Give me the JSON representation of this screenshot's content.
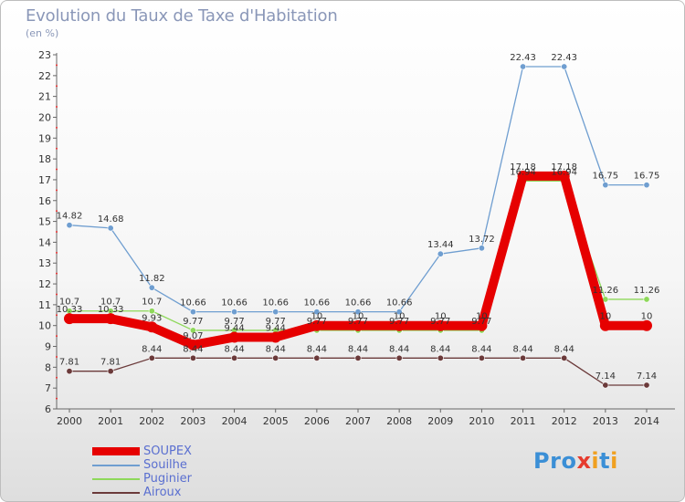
{
  "title": "Evolution du Taux de Taxe d'Habitation",
  "subtitle": "(en %)",
  "logo": {
    "text": "Proxiti",
    "colors": [
      "#3b8fd6",
      "#3b8fd6",
      "#3b8fd6",
      "#e63b2e",
      "#f0a020",
      "#3b8fd6",
      "#f0a020"
    ]
  },
  "chart_data": {
    "type": "line",
    "x": [
      "2000",
      "2001",
      "2002",
      "2003",
      "2004",
      "2005",
      "2006",
      "2007",
      "2008",
      "2009",
      "2010",
      "2011",
      "2012",
      "2013",
      "2014"
    ],
    "ylim": [
      6,
      23
    ],
    "yticks": [
      6,
      7,
      8,
      9,
      10,
      11,
      12,
      13,
      14,
      15,
      16,
      17,
      18,
      19,
      20,
      21,
      22,
      23
    ],
    "grid": false,
    "legend_position": "bottom-left",
    "series": [
      {
        "name": "SOUPEX",
        "color": "#e60000",
        "values": [
          10.33,
          10.33,
          9.93,
          9.07,
          9.44,
          9.44,
          10,
          10,
          10,
          10,
          10,
          17.18,
          17.18,
          10,
          10
        ],
        "labels": [
          "10.33",
          "10.33",
          "9.93",
          "9.07",
          "9.44",
          "9.44",
          "10",
          "10",
          "10",
          "10",
          "10",
          "17.18",
          "17.18",
          "10",
          "10"
        ]
      },
      {
        "name": "Souilhe",
        "color": "#6f9ed0",
        "values": [
          14.82,
          14.68,
          11.82,
          10.66,
          10.66,
          10.66,
          10.66,
          10.66,
          10.66,
          13.44,
          13.72,
          22.43,
          22.43,
          16.75,
          16.75
        ],
        "labels": [
          "14.82",
          "14.68",
          "11.82",
          "10.66",
          "10.66",
          "10.66",
          "10.66",
          "10.66",
          "10.66",
          "13.44",
          "13.72",
          "22.43",
          "22.43",
          "16.75",
          "16.75"
        ]
      },
      {
        "name": "Puginier",
        "color": "#8ed85a",
        "values": [
          10.7,
          10.7,
          10.7,
          9.77,
          9.77,
          9.77,
          9.77,
          9.77,
          9.77,
          9.77,
          9.77,
          16.94,
          16.94,
          11.26,
          11.26
        ],
        "labels": [
          "10.7",
          "10.7",
          "10.7",
          "9.77",
          "9.77",
          "9.77",
          "9.77",
          "9.77",
          "9.77",
          "9.77",
          "9.77",
          "16.94",
          "16.94",
          "11.26",
          "11.26"
        ]
      },
      {
        "name": "Airoux",
        "color": "#6b3a3a",
        "values": [
          7.81,
          7.81,
          8.44,
          8.44,
          8.44,
          8.44,
          8.44,
          8.44,
          8.44,
          8.44,
          8.44,
          8.44,
          8.44,
          7.14,
          7.14
        ],
        "labels": [
          "7.81",
          "7.81",
          "8.44",
          "8.44",
          "8.44",
          "8.44",
          "8.44",
          "8.44",
          "8.44",
          "8.44",
          "8.44",
          "8.44",
          "8.44",
          "7.14",
          "7.14"
        ]
      }
    ]
  }
}
